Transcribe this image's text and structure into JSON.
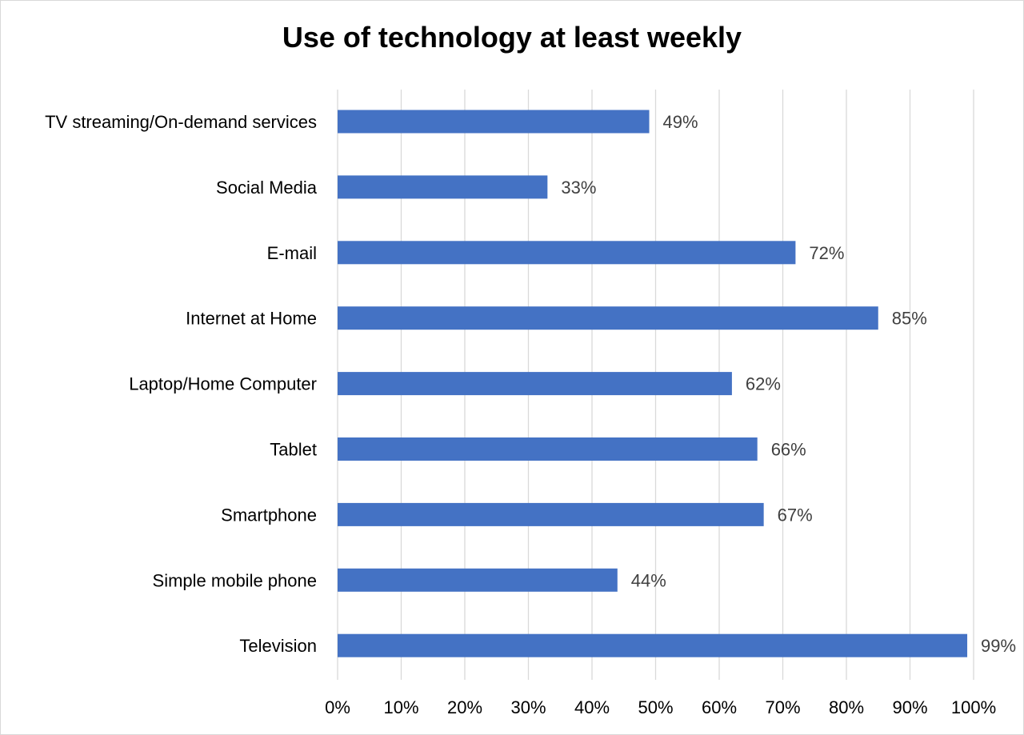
{
  "chart_data": {
    "type": "bar",
    "orientation": "horizontal",
    "title": "Use of technology at least weekly",
    "categories": [
      "TV streaming/On-demand services",
      "Social Media",
      "E-mail",
      "Internet at Home",
      "Laptop/Home Computer",
      "Tablet",
      "Smartphone",
      "Simple mobile phone",
      "Television"
    ],
    "values": [
      49,
      33,
      72,
      85,
      62,
      66,
      67,
      44,
      99
    ],
    "data_labels": [
      "49%",
      "33%",
      "72%",
      "85%",
      "62%",
      "66%",
      "67%",
      "44%",
      "99%"
    ],
    "xlim": [
      0,
      100
    ],
    "x_ticks": [
      "0%",
      "10%",
      "20%",
      "30%",
      "40%",
      "50%",
      "60%",
      "70%",
      "80%",
      "90%",
      "100%"
    ],
    "grid": "vertical",
    "legend": "none",
    "bar_color": "#4472C4",
    "grid_color": "#d9d9d9"
  }
}
